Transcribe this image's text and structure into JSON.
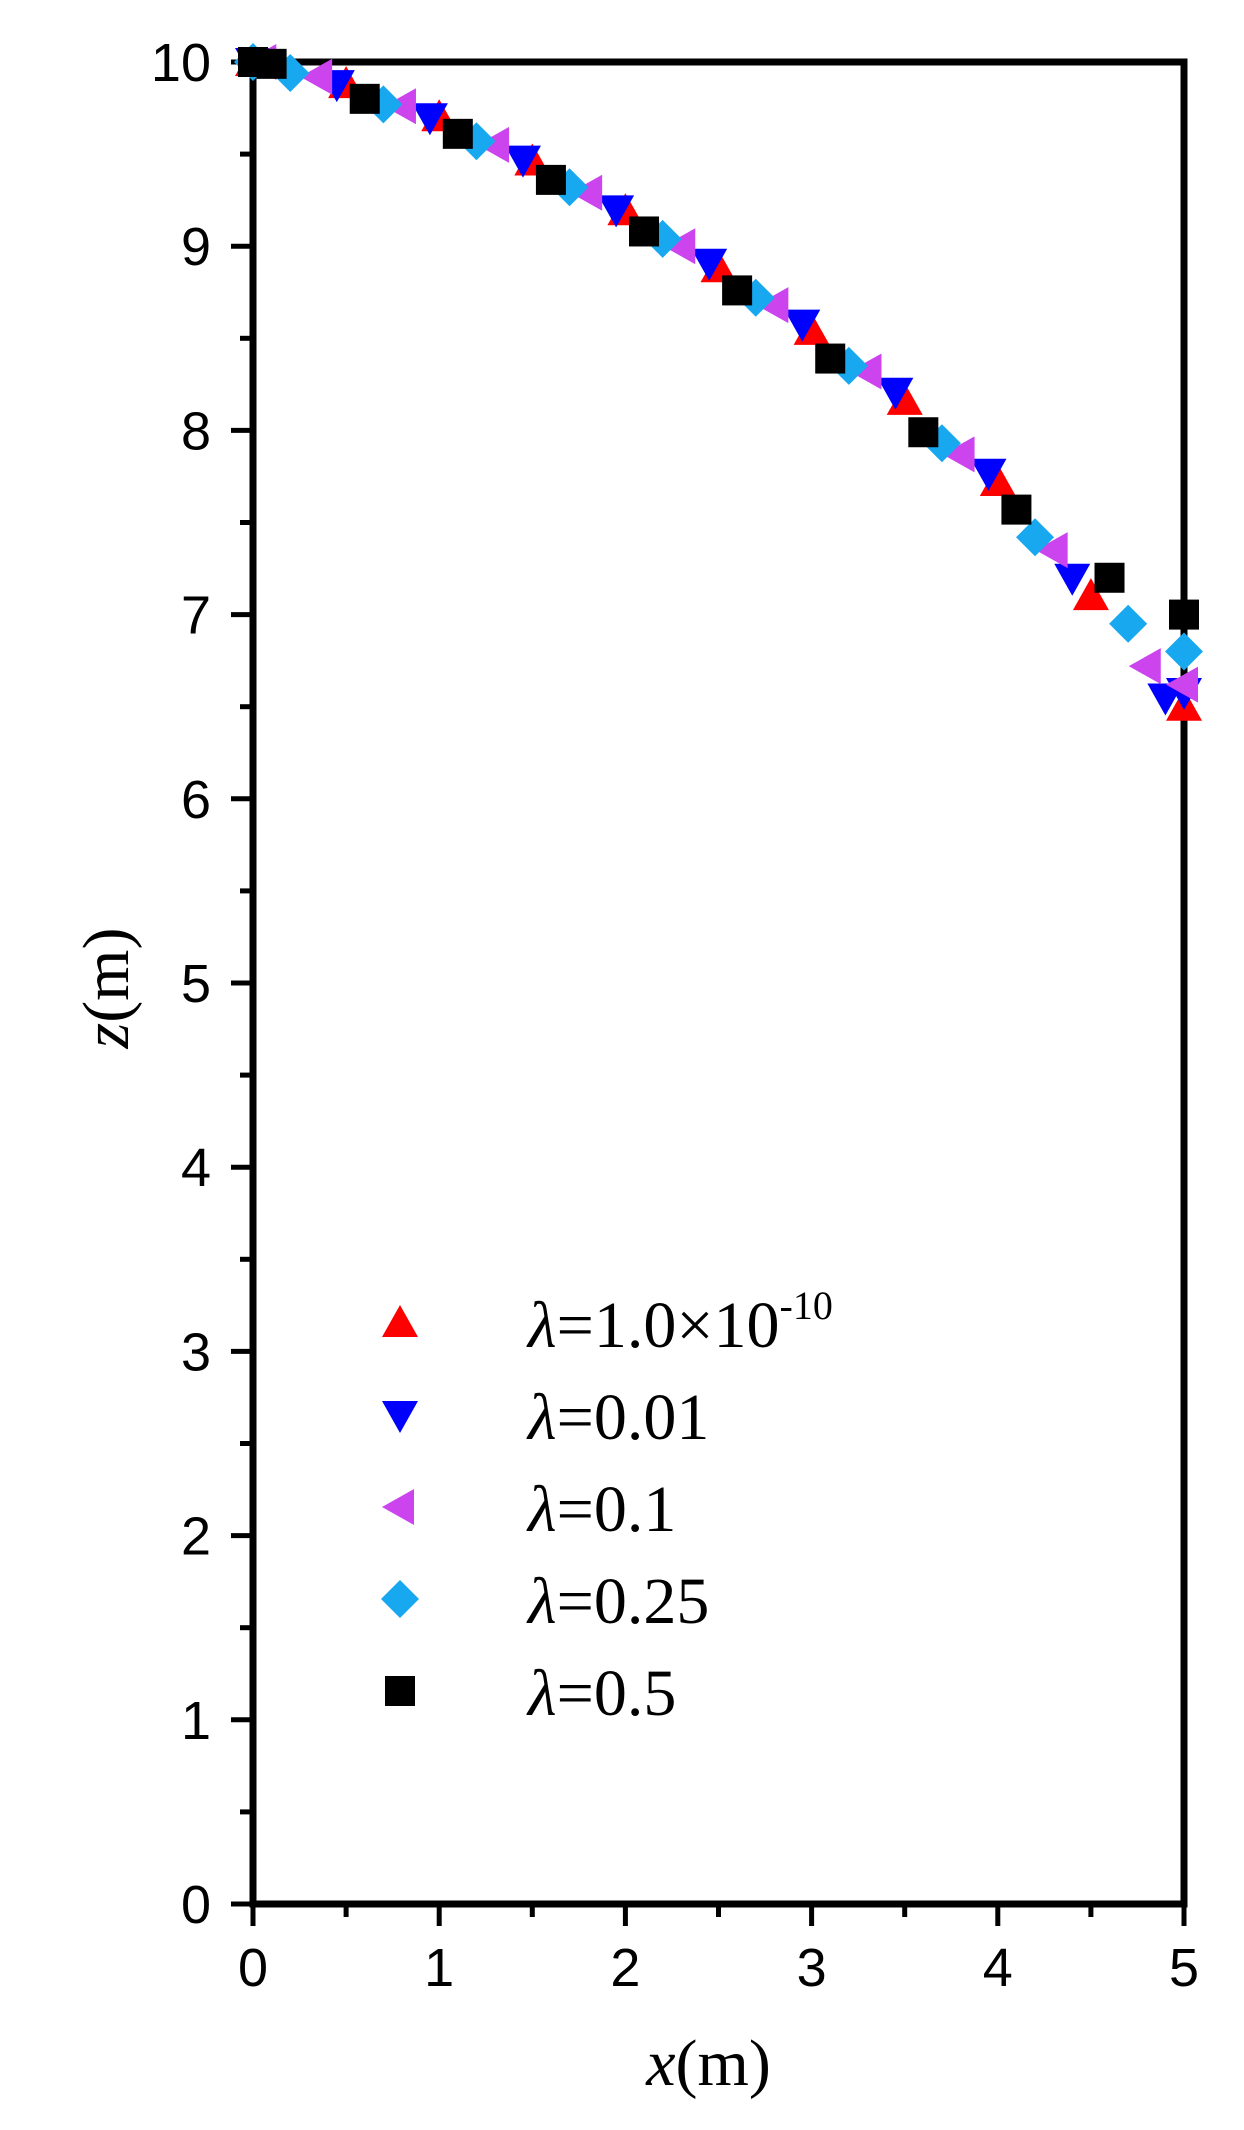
{
  "chart_data": {
    "type": "scatter",
    "title": "",
    "x_axis": {
      "label_var": "x",
      "label_unit": "(m)",
      "lim": [
        0,
        5
      ],
      "ticks": [
        0,
        1,
        2,
        3,
        4,
        5
      ],
      "tick_labels": [
        "0",
        "1",
        "2",
        "3",
        "4",
        "5"
      ],
      "minor_step": 0.5
    },
    "y_axis": {
      "label_var": "z",
      "label_unit": "(m)",
      "lim": [
        0,
        10
      ],
      "ticks": [
        0,
        1,
        2,
        3,
        4,
        5,
        6,
        7,
        8,
        9,
        10
      ],
      "tick_labels": [
        "0",
        "1",
        "2",
        "3",
        "4",
        "5",
        "6",
        "7",
        "8",
        "9",
        "10"
      ],
      "minor_step": 0.5
    },
    "grid": false,
    "legend_placement": "lower-left",
    "series": [
      {
        "name": "λ=1.0×10-10",
        "legend": {
          "symbol": "λ",
          "text": "=1.0×10",
          "sup": "-10"
        },
        "marker": "triangle-up",
        "color": "#ff0000",
        "points": [
          [
            0.0,
            10.0
          ],
          [
            0.5,
            9.88
          ],
          [
            1.0,
            9.7
          ],
          [
            1.5,
            9.46
          ],
          [
            2.0,
            9.19
          ],
          [
            2.5,
            8.88
          ],
          [
            3.0,
            8.54
          ],
          [
            3.5,
            8.16
          ],
          [
            4.0,
            7.72
          ],
          [
            4.5,
            7.1
          ],
          [
            5.0,
            6.5
          ]
        ]
      },
      {
        "name": "λ=0.01",
        "legend": {
          "symbol": "λ",
          "text": "=0.01",
          "sup": ""
        },
        "marker": "triangle-down",
        "color": "#0000ff",
        "points": [
          [
            0.0,
            10.0
          ],
          [
            0.45,
            9.88
          ],
          [
            0.95,
            9.7
          ],
          [
            1.45,
            9.47
          ],
          [
            1.95,
            9.2
          ],
          [
            2.45,
            8.91
          ],
          [
            2.95,
            8.58
          ],
          [
            3.45,
            8.21
          ],
          [
            3.95,
            7.77
          ],
          [
            4.4,
            7.2
          ],
          [
            4.9,
            6.55
          ],
          [
            5.0,
            6.58
          ]
        ]
      },
      {
        "name": "λ=0.1",
        "legend": {
          "symbol": "λ",
          "text": "=0.1",
          "sup": ""
        },
        "marker": "triangle-left",
        "color": "#cc44ee",
        "points": [
          [
            0.05,
            10.0
          ],
          [
            0.35,
            9.92
          ],
          [
            0.8,
            9.76
          ],
          [
            1.3,
            9.55
          ],
          [
            1.8,
            9.29
          ],
          [
            2.3,
            9.0
          ],
          [
            2.8,
            8.68
          ],
          [
            3.3,
            8.32
          ],
          [
            3.8,
            7.87
          ],
          [
            4.3,
            7.35
          ],
          [
            4.8,
            6.72
          ],
          [
            5.0,
            6.62
          ]
        ]
      },
      {
        "name": "λ=0.25",
        "legend": {
          "symbol": "λ",
          "text": "=0.25",
          "sup": ""
        },
        "marker": "diamond",
        "color": "#18a8f0",
        "points": [
          [
            0.0,
            10.0
          ],
          [
            0.2,
            9.94
          ],
          [
            0.7,
            9.77
          ],
          [
            1.2,
            9.57
          ],
          [
            1.7,
            9.32
          ],
          [
            2.2,
            9.04
          ],
          [
            2.7,
            8.72
          ],
          [
            3.2,
            8.35
          ],
          [
            3.7,
            7.93
          ],
          [
            4.2,
            7.42
          ],
          [
            4.7,
            6.95
          ],
          [
            5.0,
            6.8
          ]
        ]
      },
      {
        "name": "λ=0.5",
        "legend": {
          "symbol": "λ",
          "text": "=0.5",
          "sup": ""
        },
        "marker": "square",
        "color": "#000000",
        "points": [
          [
            0.0,
            10.0
          ],
          [
            0.1,
            9.99
          ],
          [
            0.6,
            9.8
          ],
          [
            1.1,
            9.61
          ],
          [
            1.6,
            9.36
          ],
          [
            2.1,
            9.08
          ],
          [
            2.6,
            8.76
          ],
          [
            3.1,
            8.39
          ],
          [
            3.6,
            7.99
          ],
          [
            4.1,
            7.57
          ],
          [
            4.6,
            7.2
          ],
          [
            5.0,
            7.0
          ]
        ]
      }
    ]
  }
}
